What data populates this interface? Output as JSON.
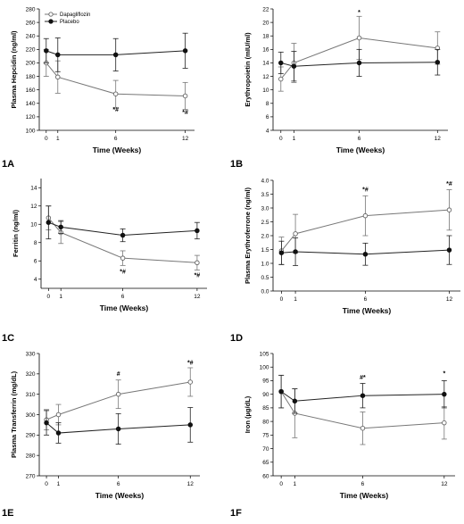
{
  "legend": {
    "series_names": [
      "Dapagliflozin",
      "Placebo"
    ]
  },
  "chart_data": [
    {
      "type": "line",
      "panel_label": "1A",
      "title": "",
      "xlabel": "Time (Weeks)",
      "ylabel": "Plasma Hepcidin (ng/ml)",
      "x": [
        0,
        1,
        6,
        12
      ],
      "xticks": [
        0,
        1,
        6,
        12
      ],
      "ylim": [
        100,
        280
      ],
      "yticks": [
        100,
        120,
        140,
        160,
        180,
        200,
        220,
        240,
        260,
        280
      ],
      "grid": false,
      "legend": "top-left",
      "series": [
        {
          "name": "Dapagliflozin",
          "marker": "open-circle",
          "values": [
            200,
            179,
            154,
            151
          ],
          "errors": [
            20,
            24,
            20,
            20
          ]
        },
        {
          "name": "Placebo",
          "marker": "filled-circle",
          "values": [
            218,
            212,
            212,
            218
          ],
          "errors": [
            18,
            25,
            24,
            26
          ]
        }
      ],
      "annotations": [
        {
          "x": 6,
          "y": 128,
          "text": "*#"
        },
        {
          "x": 12,
          "y": 124,
          "text": "*#"
        }
      ]
    },
    {
      "type": "line",
      "panel_label": "1B",
      "title": "",
      "xlabel": "Time (Weeks)",
      "ylabel": "Erythropoietin (mIU/ml)",
      "x": [
        0,
        1,
        6,
        12
      ],
      "xticks": [
        0,
        1,
        6,
        12
      ],
      "ylim": [
        4,
        22
      ],
      "yticks": [
        4,
        6,
        8,
        10,
        12,
        14,
        16,
        18,
        20,
        22
      ],
      "grid": false,
      "series": [
        {
          "name": "Dapagliflozin",
          "marker": "open-circle",
          "values": [
            11.6,
            14.0,
            17.7,
            16.2
          ],
          "errors": [
            1.8,
            2.9,
            3.2,
            2.4
          ]
        },
        {
          "name": "Placebo",
          "marker": "filled-circle",
          "values": [
            14.0,
            13.5,
            14.0,
            14.1
          ],
          "errors": [
            1.6,
            2.2,
            2.0,
            1.9
          ]
        }
      ],
      "annotations": [
        {
          "x": 6,
          "y": 21.2,
          "text": "*"
        }
      ]
    },
    {
      "type": "line",
      "panel_label": "1C",
      "title": "",
      "xlabel": "Time (Weeks)",
      "ylabel": "Ferritin (ng/ml)",
      "x": [
        0,
        1,
        6,
        12
      ],
      "xticks": [
        0,
        1,
        6,
        12
      ],
      "ylim": [
        3,
        15
      ],
      "yticks": [
        4,
        6,
        8,
        10,
        12,
        14
      ],
      "grid": false,
      "series": [
        {
          "name": "Dapagliflozin",
          "marker": "open-circle",
          "values": [
            10.7,
            9.1,
            6.3,
            5.8
          ],
          "errors": [
            1.3,
            1.2,
            0.8,
            0.8
          ]
        },
        {
          "name": "Placebo",
          "marker": "filled-circle",
          "values": [
            10.2,
            9.7,
            8.8,
            9.3
          ],
          "errors": [
            1.8,
            0.7,
            0.7,
            0.9
          ]
        }
      ],
      "annotations": [
        {
          "x": 6,
          "y": 4.6,
          "text": "*#"
        },
        {
          "x": 12,
          "y": 4.2,
          "text": "*#"
        }
      ]
    },
    {
      "type": "line",
      "panel_label": "1D",
      "title": "",
      "xlabel": "Time (Weeks)",
      "ylabel": "Plasma Erythroferrone (ng/ml)",
      "x": [
        0,
        1,
        6,
        12
      ],
      "xticks": [
        0,
        1,
        6,
        12
      ],
      "ylim": [
        0,
        4.0
      ],
      "yticks": [
        0.0,
        0.5,
        1.0,
        1.5,
        2.0,
        2.5,
        3.0,
        3.5,
        4.0
      ],
      "grid": false,
      "series": [
        {
          "name": "Dapagliflozin",
          "marker": "open-circle",
          "values": [
            1.45,
            2.07,
            2.72,
            2.93
          ],
          "errors": [
            0.5,
            0.7,
            0.72,
            0.73
          ]
        },
        {
          "name": "Placebo",
          "marker": "filled-circle",
          "values": [
            1.38,
            1.42,
            1.33,
            1.48
          ],
          "errors": [
            0.42,
            0.5,
            0.4,
            0.52
          ]
        }
      ],
      "annotations": [
        {
          "x": 6,
          "y": 3.6,
          "text": "*#"
        },
        {
          "x": 12,
          "y": 3.8,
          "text": "*#"
        }
      ]
    },
    {
      "type": "line",
      "panel_label": "1E",
      "title": "",
      "xlabel": "Time (Weeks)",
      "ylabel": "Plasma Transferrin (mg/dL)",
      "x": [
        0,
        1,
        6,
        12
      ],
      "xticks": [
        0,
        1,
        6,
        12
      ],
      "ylim": [
        270,
        330
      ],
      "yticks": [
        270,
        280,
        290,
        300,
        310,
        320,
        330
      ],
      "grid": false,
      "series": [
        {
          "name": "Dapagliflozin",
          "marker": "open-circle",
          "values": [
            297.5,
            300,
            310,
            316
          ],
          "errors": [
            5,
            5,
            7,
            7
          ]
        },
        {
          "name": "Placebo",
          "marker": "filled-circle",
          "values": [
            296,
            291,
            293,
            295
          ],
          "errors": [
            6,
            5,
            7.5,
            8.5
          ]
        }
      ],
      "annotations": [
        {
          "x": 6,
          "y": 319,
          "text": "#"
        },
        {
          "x": 12,
          "y": 324.5,
          "text": "*#"
        }
      ]
    },
    {
      "type": "line",
      "panel_label": "1F",
      "title": "",
      "xlabel": "Time (Weeks)",
      "ylabel": "Iron (µg/dL)",
      "x": [
        0,
        1,
        6,
        12
      ],
      "xticks": [
        0,
        1,
        6,
        12
      ],
      "ylim": [
        60,
        105
      ],
      "yticks": [
        60,
        65,
        70,
        75,
        80,
        85,
        90,
        95,
        100,
        105
      ],
      "grid": false,
      "series": [
        {
          "name": "Dapagliflozin",
          "marker": "open-circle",
          "values": [
            91,
            83,
            77.5,
            79.5
          ],
          "errors": [
            6,
            9,
            6,
            6
          ]
        },
        {
          "name": "Placebo",
          "marker": "filled-circle",
          "values": [
            91,
            87.5,
            89.5,
            90
          ],
          "errors": [
            6,
            4.5,
            4.5,
            5
          ]
        }
      ],
      "annotations": [
        {
          "x": 6,
          "y": 95.5,
          "text": "#*"
        },
        {
          "x": 12,
          "y": 97,
          "text": "*"
        }
      ]
    }
  ]
}
